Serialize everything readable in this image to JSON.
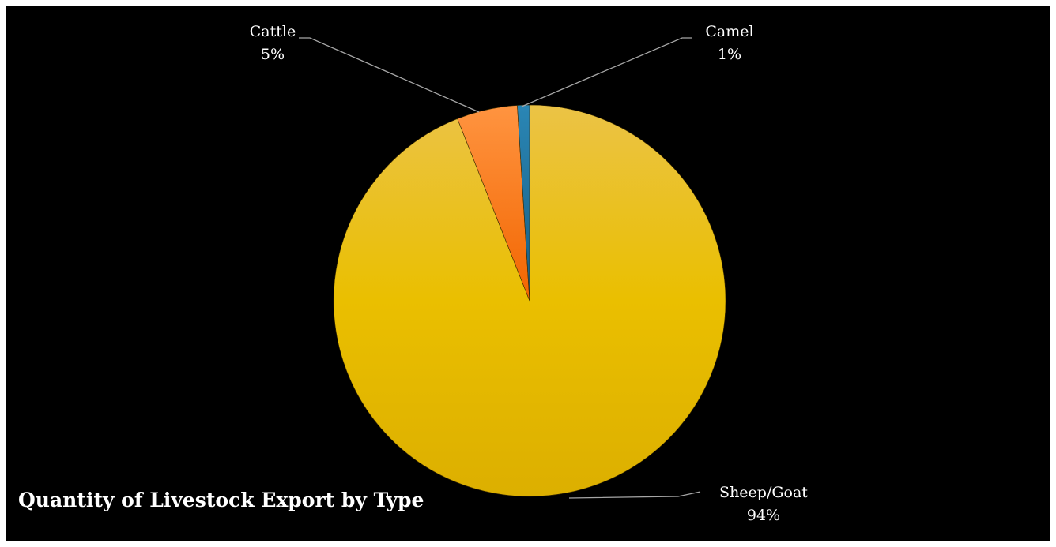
{
  "chart_data": {
    "type": "pie",
    "title": "Quantity of Livestock Export by Type",
    "categories": [
      "Sheep/Goat",
      "Cattle",
      "Camel"
    ],
    "values": [
      94,
      5,
      1
    ],
    "value_labels": [
      "94%",
      "5%",
      "1%"
    ],
    "colors": [
      "#e6b800",
      "#ff7a1a",
      "#1f6f99"
    ],
    "start_angle": "12 o'clock, clockwise",
    "legend": "none",
    "background": "#000000"
  }
}
